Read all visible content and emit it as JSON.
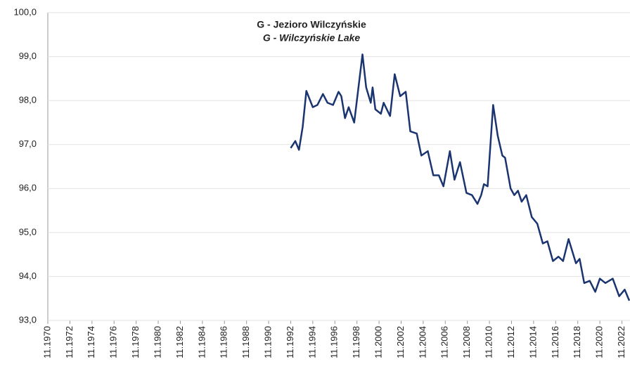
{
  "chart_data": {
    "type": "line",
    "title": "G - Jezioro Wilczyńskie",
    "subtitle": "G - Wilczyńskie Lake",
    "x": [
      "11.1992",
      "04.1993",
      "08.1993",
      "12.1993",
      "04.1994",
      "11.1994",
      "04.1995",
      "10.1995",
      "03.1996",
      "09.1996",
      "03.1997",
      "06.1997",
      "10.1997",
      "02.1998",
      "08.1998",
      "05.1999",
      "09.1999",
      "02.2000",
      "04.2000",
      "07.2000",
      "01.2001",
      "04.2001",
      "11.2001",
      "04.2002",
      "10.2002",
      "04.2003",
      "09.2003",
      "04.2004",
      "09.2004",
      "04.2005",
      "10.2005",
      "04.2006",
      "09.2006",
      "04.2007",
      "09.2007",
      "03.2008",
      "10.2008",
      "04.2009",
      "10.2009",
      "02.2010",
      "05.2010",
      "09.2010",
      "03.2011",
      "08.2011",
      "01.2012",
      "04.2012",
      "10.2012",
      "02.2013",
      "06.2013",
      "10.2013",
      "03.2014",
      "09.2014",
      "03.2015",
      "09.2015",
      "02.2016",
      "08.2016",
      "02.2017",
      "07.2017",
      "01.2018",
      "09.2018",
      "01.2019",
      "06.2019",
      "12.2019",
      "06.2020",
      "11.2020",
      "05.2021",
      "01.2022",
      "08.2022",
      "02.2023",
      "07.2023"
    ],
    "series": [
      {
        "name": "G - Jezioro Wilczyńskie",
        "color": "#1a3470",
        "values": [
          96.92,
          97.08,
          96.88,
          97.4,
          98.22,
          97.85,
          97.9,
          98.15,
          97.95,
          97.9,
          98.2,
          98.1,
          97.6,
          97.85,
          97.5,
          99.05,
          98.3,
          97.95,
          98.3,
          97.8,
          97.7,
          97.95,
          97.65,
          98.6,
          98.1,
          98.2,
          97.3,
          97.25,
          96.75,
          96.85,
          96.3,
          96.3,
          96.05,
          96.85,
          96.2,
          96.6,
          95.9,
          95.85,
          95.65,
          95.85,
          96.1,
          96.05,
          97.9,
          97.2,
          96.75,
          96.7,
          96.0,
          95.85,
          95.95,
          95.7,
          95.85,
          95.35,
          95.2,
          94.75,
          94.8,
          94.35,
          94.45,
          94.35,
          94.85,
          94.3,
          94.4,
          93.85,
          93.9,
          93.65,
          93.95,
          93.85,
          93.95,
          93.55,
          93.7,
          93.45
        ]
      }
    ],
    "xlim": [
      "11.1970",
      "07.2023"
    ],
    "xticks": [
      "11.1970",
      "11.1972",
      "11.1974",
      "11.1976",
      "11.1978",
      "11.1980",
      "11.1982",
      "11.1984",
      "11.1986",
      "11.1988",
      "11.1990",
      "11.1992",
      "11.1994",
      "11.1996",
      "11.1998",
      "11.2000",
      "11.2002",
      "11.2004",
      "11.2006",
      "11.2008",
      "11.2010",
      "11.2012",
      "11.2014",
      "11.2016",
      "11.2018",
      "11.2020",
      "11.2022"
    ],
    "ylim": [
      93,
      100
    ],
    "yticks": [
      {
        "value": 93,
        "label": "93,0"
      },
      {
        "value": 94,
        "label": "94,0"
      },
      {
        "value": 95,
        "label": "95,0"
      },
      {
        "value": 96,
        "label": "96,0"
      },
      {
        "value": 97,
        "label": "97,0"
      },
      {
        "value": 98,
        "label": "98,0"
      },
      {
        "value": 99,
        "label": "99,0"
      },
      {
        "value": 100,
        "label": "100,0"
      }
    ],
    "grid": true
  }
}
